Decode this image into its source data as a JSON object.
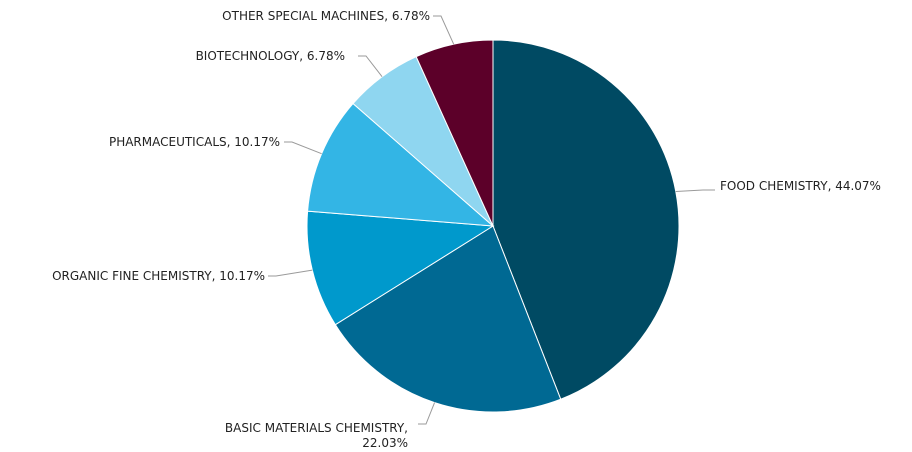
{
  "chart_data": {
    "type": "pie",
    "title": "",
    "slices": [
      {
        "label": "FOOD CHEMISTRY",
        "value": 44.07,
        "value_text": "44.07%",
        "color": "#004a63"
      },
      {
        "label": "BASIC MATERIALS CHEMISTRY",
        "value": 22.03,
        "value_text": "22.03%",
        "color": "#006993"
      },
      {
        "label": "ORGANIC FINE CHEMISTRY",
        "value": 10.17,
        "value_text": "10.17%",
        "color": "#0099cc"
      },
      {
        "label": "PHARMACEUTICALS",
        "value": 10.17,
        "value_text": "10.17%",
        "color": "#33b5e5"
      },
      {
        "label": "BIOTECHNOLOGY",
        "value": 6.78,
        "value_text": "6.78%",
        "color": "#8fd6f0"
      },
      {
        "label": "OTHER SPECIAL MACHINES",
        "value": 6.78,
        "value_text": "6.78%",
        "color": "#5c0029"
      }
    ],
    "start_angle": "12 o'clock",
    "direction": "clockwise",
    "legend": "none",
    "data_labels": "outside with leader lines"
  }
}
